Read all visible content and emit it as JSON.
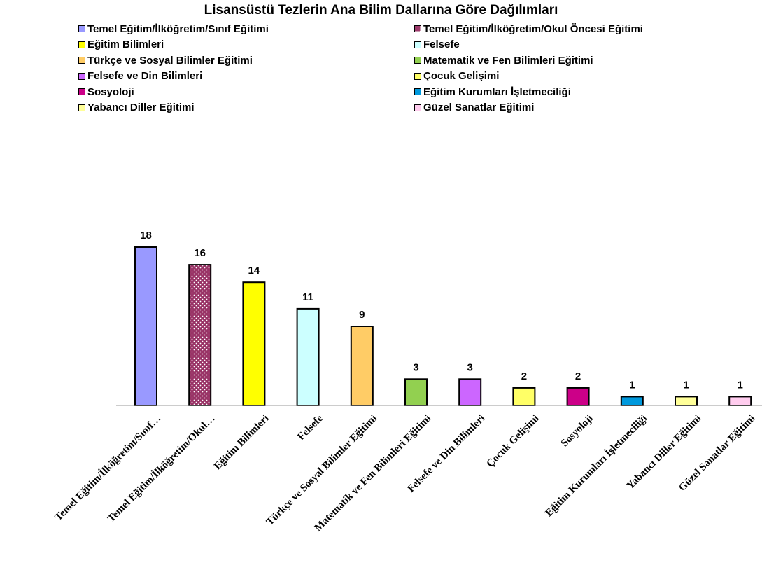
{
  "chart_data": {
    "type": "bar",
    "title": "Lisansüstü Tezlerin Ana Bilim Dallarına Göre Dağılımları",
    "xlabel": "",
    "ylabel": "",
    "ylim": [
      0,
      18
    ],
    "grid": false,
    "legend_position": "top",
    "categories": [
      "Temel Eğitim/İlköğretim/Sınıf Eğitimi",
      "Temel Eğitim/İlköğretim/Okul Öncesi Eğitimi",
      "Eğitim Bilimleri",
      "Felsefe",
      "Türkçe ve Sosyal Bilimler Eğitimi",
      "Matematik ve Fen Bilimleri Eğitimi",
      "Felsefe ve Din Bilimleri",
      "Çocuk Gelişimi",
      "Sosyoloji",
      "Eğitim Kurumları İşletmeciliği",
      "Yabancı Diller Eğitimi",
      "Güzel Sanatlar Eğitimi"
    ],
    "axis_labels": [
      "Temel Eğitim/İlköğretim/Sınıf…",
      "Temel Eğitim/İlköğretim/Okul…",
      "Eğitim Bilimleri",
      "Felsefe",
      "Türkçe ve Sosyal Bilimler Eğitimi",
      "Matematik ve Fen Bilimleri Eğitimi",
      "Felsefe ve Din Bilimleri",
      "Çocuk Gelişimi",
      "Sosyoloji",
      "Eğitim Kurumları İşletmeciliği",
      "Yabancı Diller Eğitimi",
      "Güzel Sanatlar Eğitimi"
    ],
    "values": [
      18,
      16,
      14,
      11,
      9,
      3,
      3,
      2,
      2,
      1,
      1,
      1
    ],
    "colors": [
      "#9999ff",
      "#993366",
      "#ffff00",
      "#ccffff",
      "#ffcc66",
      "#92d050",
      "#cc66ff",
      "#ffff66",
      "#cc0088",
      "#0099dd",
      "#ffff99",
      "#ffccee"
    ],
    "patterns": [
      "solid",
      "dotted",
      "solid",
      "solid",
      "solid",
      "solid",
      "solid",
      "solid",
      "solid",
      "solid",
      "solid",
      "solid"
    ]
  }
}
